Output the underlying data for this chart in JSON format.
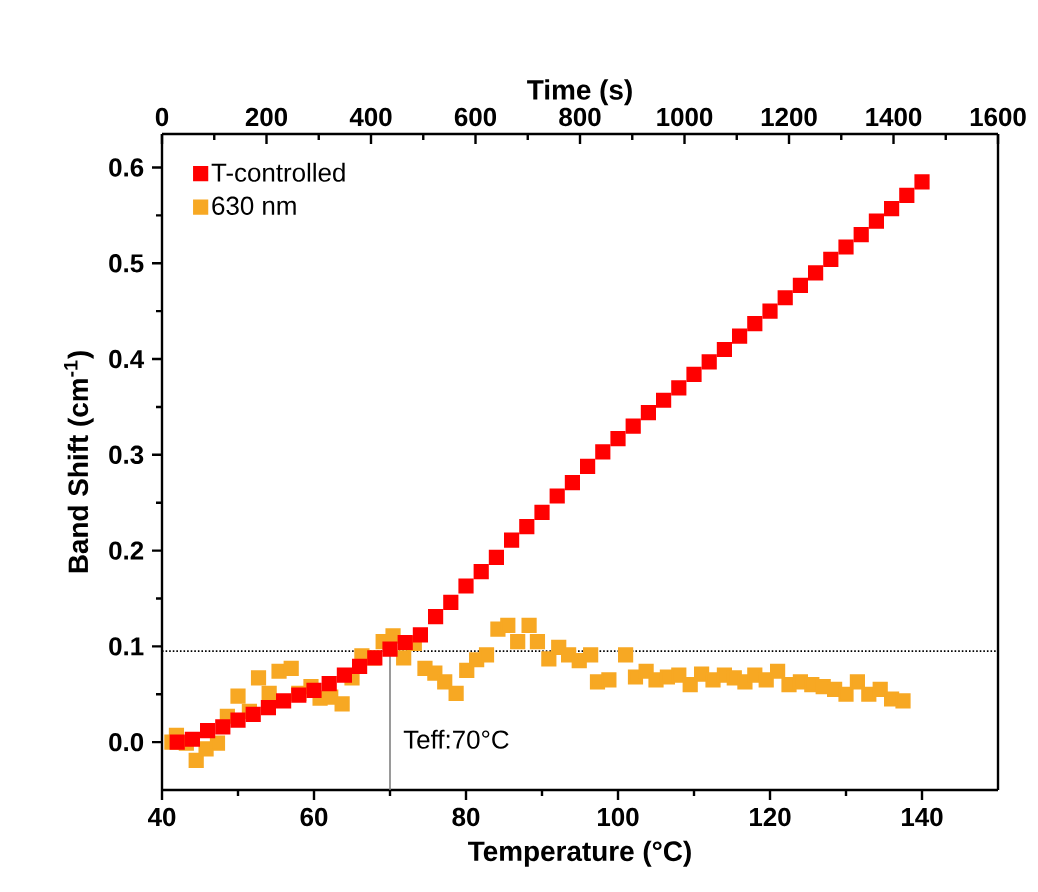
{
  "chart_data": {
    "type": "scatter",
    "xlabel": "Temperature (°C)",
    "ylabel": "Band Shift (cm$^{-1}$)",
    "x2label": "Time (s)",
    "xlim": [
      40,
      150
    ],
    "xticks": [
      40,
      60,
      80,
      100,
      120,
      140
    ],
    "x2lim": [
      0,
      1600
    ],
    "x2ticks": [
      0,
      200,
      400,
      600,
      800,
      1000,
      1200,
      1400,
      1600
    ],
    "ylim": [
      -0.05,
      0.635
    ],
    "yticks": [
      {
        "value": 0,
        "label": "0.0"
      },
      {
        "value": 0.1,
        "label": "0.1"
      },
      {
        "value": 0.2,
        "label": "0.2"
      },
      {
        "value": 0.3,
        "label": "0.3"
      },
      {
        "value": 0.4,
        "label": "0.4"
      },
      {
        "value": 0.5,
        "label": "0.5"
      },
      {
        "value": 0.6,
        "label": "0.6"
      }
    ],
    "marker": "square",
    "legend": "top left",
    "grid": false,
    "ref_lines": [
      {
        "axis": "y",
        "value": 0.095,
        "color": "#000000",
        "line_style": "dotted"
      },
      {
        "axis": "x",
        "value": 70,
        "label": "Teff:70°C",
        "color": "#808080",
        "line_style": "solid"
      }
    ],
    "series": [
      {
        "name": "T-controlled",
        "color": "#ff0000",
        "x": [
          42,
          44,
          46,
          48,
          50,
          52,
          54,
          56,
          58,
          60,
          62,
          64,
          66,
          68,
          70,
          72,
          74,
          76,
          78,
          80,
          82,
          84,
          86,
          88,
          90,
          92,
          94,
          96,
          98,
          100,
          102,
          104,
          106,
          108,
          110,
          112,
          114,
          116,
          118,
          120,
          122,
          124,
          126,
          128,
          130,
          132,
          134,
          136,
          138,
          140
        ],
        "values": [
          0.0,
          0.003,
          0.012,
          0.016,
          0.023,
          0.029,
          0.036,
          0.043,
          0.049,
          0.054,
          0.061,
          0.07,
          0.079,
          0.088,
          0.097,
          0.104,
          0.112,
          0.131,
          0.146,
          0.163,
          0.178,
          0.193,
          0.211,
          0.225,
          0.24,
          0.257,
          0.271,
          0.288,
          0.303,
          0.317,
          0.33,
          0.344,
          0.357,
          0.37,
          0.384,
          0.397,
          0.41,
          0.424,
          0.437,
          0.45,
          0.464,
          0.477,
          0.49,
          0.504,
          0.517,
          0.53,
          0.544,
          0.557,
          0.571,
          0.585
        ]
      },
      {
        "name": "630 nm",
        "color": "#f7a823",
        "x": [
          41.3,
          41.9,
          43.2,
          44.5,
          45.8,
          47.3,
          48.6,
          50,
          51.5,
          52.7,
          54.1,
          55.4,
          57,
          58,
          59.6,
          60.8,
          62.2,
          63.7,
          65,
          66.3,
          67.8,
          69.1,
          70.4,
          71.8,
          73.2,
          74.6,
          75.9,
          77.2,
          78.7,
          80.1,
          81.4,
          82.7,
          84.2,
          85.5,
          86.8,
          88.3,
          89.4,
          90.9,
          92.2,
          93.5,
          94.9,
          96.4,
          97.3,
          98.8,
          101,
          102.3,
          103.7,
          105,
          106.5,
          108,
          109.5,
          111,
          112.5,
          114,
          115.3,
          116.7,
          118,
          119.5,
          121,
          122.5,
          124,
          125.5,
          127,
          128.5,
          130,
          131.5,
          133,
          134.5,
          136,
          137.5
        ],
        "values": [
          0.0,
          0.007,
          -0.001,
          -0.019,
          -0.007,
          -0.001,
          0.027,
          0.048,
          0.032,
          0.067,
          0.051,
          0.074,
          0.077,
          0.051,
          0.058,
          0.046,
          0.047,
          0.04,
          0.067,
          0.09,
          0.088,
          0.105,
          0.111,
          0.088,
          0.103,
          0.077,
          0.072,
          0.063,
          0.051,
          0.075,
          0.086,
          0.091,
          0.118,
          0.122,
          0.105,
          0.122,
          0.105,
          0.087,
          0.099,
          0.091,
          0.085,
          0.091,
          0.063,
          0.065,
          0.091,
          0.068,
          0.074,
          0.065,
          0.068,
          0.07,
          0.06,
          0.071,
          0.065,
          0.07,
          0.067,
          0.063,
          0.07,
          0.065,
          0.074,
          0.06,
          0.063,
          0.06,
          0.058,
          0.055,
          0.05,
          0.063,
          0.05,
          0.055,
          0.045,
          0.043
        ]
      }
    ]
  }
}
